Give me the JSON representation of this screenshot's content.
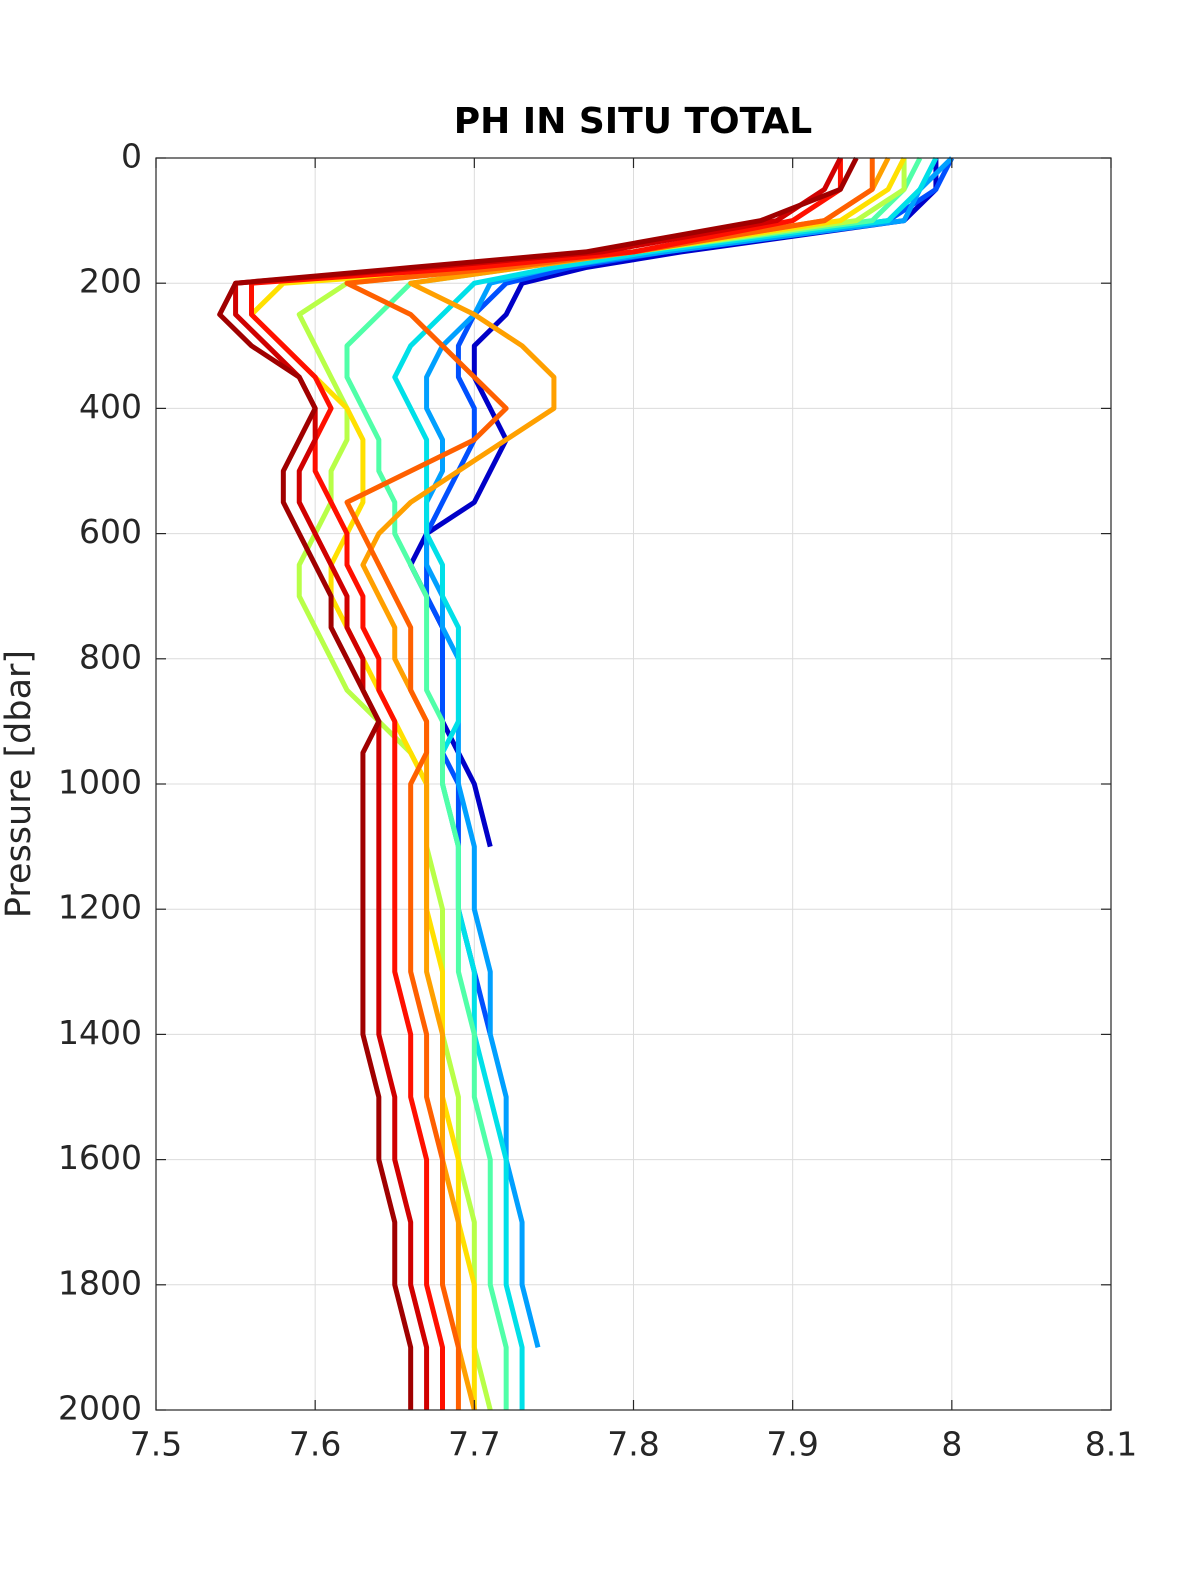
{
  "chart_data": {
    "type": "line",
    "title": "PH IN SITU TOTAL",
    "y_label": "Pressure [dbar]",
    "y": [
      0,
      50,
      100,
      150,
      175,
      200,
      250,
      300,
      350,
      400,
      450,
      500,
      550,
      600,
      650,
      700,
      750,
      800,
      850,
      900,
      950,
      1000,
      1100,
      1200,
      1300,
      1400,
      1500,
      1600,
      1700,
      1800,
      1900,
      2000
    ],
    "xlim": [
      7.5,
      8.1
    ],
    "xticks": [
      7.5,
      7.6,
      7.7,
      7.8,
      7.9,
      8,
      8.1
    ],
    "ylim": [
      0,
      2000
    ],
    "yticks": [
      0,
      200,
      400,
      600,
      800,
      1000,
      1200,
      1400,
      1600,
      1800,
      2000
    ],
    "y_reversed": true,
    "grid": true,
    "series": [
      {
        "color": "#0000c8",
        "values": [
          7.99,
          7.99,
          7.97,
          7.83,
          7.77,
          7.73,
          7.72,
          7.7,
          7.7,
          7.71,
          7.72,
          7.71,
          7.7,
          7.67,
          7.66,
          7.67,
          7.68,
          7.68,
          7.68,
          7.68,
          7.69,
          7.7,
          7.71,
          null,
          null,
          null,
          null,
          null,
          null,
          null,
          null,
          null
        ]
      },
      {
        "color": "#0050ff",
        "values": [
          8.0,
          7.99,
          7.96,
          7.82,
          7.76,
          7.72,
          7.7,
          7.69,
          7.69,
          7.7,
          7.7,
          7.69,
          7.68,
          7.67,
          7.67,
          7.67,
          7.68,
          7.68,
          7.68,
          7.68,
          7.68,
          7.69,
          7.69,
          7.69,
          7.7,
          7.71,
          null,
          null,
          null,
          null,
          null,
          null
        ]
      },
      {
        "color": "#00a0ff",
        "values": [
          8.0,
          7.98,
          7.97,
          7.82,
          7.75,
          7.71,
          7.7,
          7.68,
          7.67,
          7.67,
          7.68,
          7.68,
          7.67,
          7.67,
          7.67,
          7.68,
          7.68,
          7.69,
          7.69,
          7.69,
          7.69,
          7.69,
          7.7,
          7.7,
          7.71,
          7.71,
          7.72,
          7.72,
          7.73,
          7.73,
          7.74,
          null
        ]
      },
      {
        "color": "#00e0e8",
        "values": [
          7.99,
          7.98,
          7.96,
          7.81,
          7.75,
          7.7,
          7.68,
          7.66,
          7.65,
          7.66,
          7.67,
          7.67,
          7.67,
          7.67,
          7.68,
          7.68,
          7.69,
          7.69,
          7.69,
          7.69,
          7.68,
          7.68,
          7.69,
          7.69,
          7.7,
          7.7,
          7.71,
          7.72,
          7.72,
          7.72,
          7.73,
          7.73
        ]
      },
      {
        "color": "#50ffa8",
        "values": [
          7.98,
          7.97,
          7.95,
          7.8,
          7.73,
          7.66,
          7.64,
          7.62,
          7.62,
          7.63,
          7.64,
          7.64,
          7.65,
          7.65,
          7.66,
          7.67,
          7.67,
          7.67,
          7.67,
          7.68,
          7.68,
          7.68,
          7.69,
          7.69,
          7.69,
          7.7,
          7.7,
          7.71,
          7.71,
          7.71,
          7.72,
          7.72
        ]
      },
      {
        "color": "#b8ff48",
        "values": [
          7.97,
          7.97,
          7.94,
          7.8,
          7.72,
          7.62,
          7.59,
          7.6,
          7.61,
          7.62,
          7.62,
          7.61,
          7.61,
          7.6,
          7.59,
          7.59,
          7.6,
          7.61,
          7.62,
          7.64,
          7.66,
          7.67,
          7.67,
          7.68,
          7.68,
          7.68,
          7.69,
          7.69,
          7.7,
          7.7,
          7.7,
          7.71
        ]
      },
      {
        "color": "#ffe000",
        "values": [
          7.97,
          7.96,
          7.93,
          7.8,
          7.72,
          7.58,
          7.56,
          7.58,
          7.6,
          7.62,
          7.63,
          7.63,
          7.63,
          7.62,
          7.61,
          7.61,
          7.62,
          7.63,
          7.64,
          7.65,
          7.66,
          7.67,
          7.67,
          7.67,
          7.68,
          7.68,
          7.68,
          7.69,
          7.69,
          7.7,
          7.7,
          7.7
        ]
      },
      {
        "color": "#ffa000",
        "values": [
          7.96,
          7.95,
          7.92,
          7.8,
          7.73,
          7.66,
          7.7,
          7.73,
          7.75,
          7.75,
          7.72,
          7.69,
          7.66,
          7.64,
          7.63,
          7.64,
          7.65,
          7.65,
          7.66,
          7.67,
          7.67,
          7.67,
          7.67,
          7.67,
          7.67,
          7.68,
          7.68,
          7.68,
          7.69,
          7.69,
          7.69,
          7.7
        ]
      },
      {
        "color": "#ff6000",
        "values": [
          7.95,
          7.95,
          7.92,
          7.8,
          7.72,
          7.62,
          7.66,
          7.68,
          7.7,
          7.72,
          7.7,
          7.66,
          7.62,
          7.63,
          7.64,
          7.65,
          7.66,
          7.66,
          7.66,
          7.67,
          7.67,
          7.66,
          7.66,
          7.66,
          7.66,
          7.67,
          7.67,
          7.68,
          7.68,
          7.68,
          7.69,
          7.69
        ]
      },
      {
        "color": "#ff1000",
        "values": [
          7.93,
          7.93,
          7.9,
          7.8,
          7.7,
          7.56,
          7.56,
          7.58,
          7.6,
          7.61,
          7.6,
          7.6,
          7.61,
          7.62,
          7.62,
          7.63,
          7.63,
          7.64,
          7.64,
          7.65,
          7.65,
          7.65,
          7.65,
          7.65,
          7.65,
          7.66,
          7.66,
          7.67,
          7.67,
          7.67,
          7.68,
          7.68
        ]
      },
      {
        "color": "#d00000",
        "values": [
          7.93,
          7.92,
          7.89,
          7.78,
          7.67,
          7.55,
          7.55,
          7.57,
          7.59,
          7.6,
          7.6,
          7.59,
          7.59,
          7.6,
          7.61,
          7.62,
          7.62,
          7.63,
          7.63,
          7.64,
          7.64,
          7.64,
          7.64,
          7.64,
          7.64,
          7.64,
          7.65,
          7.65,
          7.66,
          7.66,
          7.67,
          7.67
        ]
      },
      {
        "color": "#a00000",
        "values": [
          7.94,
          7.93,
          7.88,
          7.77,
          7.66,
          7.55,
          7.54,
          7.56,
          7.59,
          7.6,
          7.59,
          7.58,
          7.58,
          7.59,
          7.6,
          7.61,
          7.61,
          7.62,
          7.63,
          7.64,
          7.63,
          7.63,
          7.63,
          7.63,
          7.63,
          7.63,
          7.64,
          7.64,
          7.65,
          7.65,
          7.66,
          7.66
        ]
      }
    ]
  }
}
